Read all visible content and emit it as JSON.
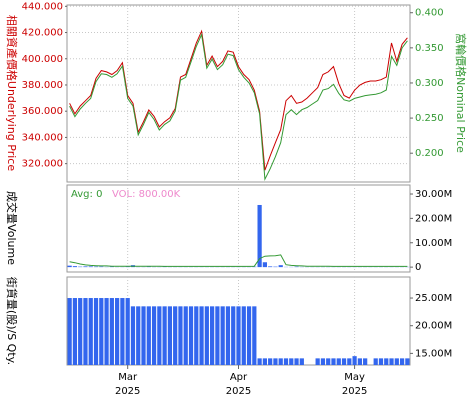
{
  "chart_data": [
    {
      "type": "line",
      "y_label": "相關資產價格Underlying Price",
      "y2_label": "窩輪價格Nominal Price",
      "x": [
        0,
        1,
        2,
        3,
        4,
        5,
        6,
        7,
        8,
        9,
        10,
        11,
        12,
        13,
        14,
        15,
        16,
        17,
        18,
        19,
        20,
        21,
        22,
        23,
        24,
        25,
        26,
        27,
        28,
        29,
        30,
        31,
        32,
        33,
        34,
        35,
        36,
        37,
        38,
        39,
        40,
        41,
        42,
        43,
        44,
        45,
        46,
        47,
        48,
        49,
        50,
        51,
        52,
        53,
        54,
        55,
        56,
        57,
        58,
        59,
        60,
        61,
        62,
        63,
        64
      ],
      "xlim": [
        -0.5,
        64.5
      ],
      "ylim": [
        306,
        441
      ],
      "y2lim": [
        0.159,
        0.411
      ],
      "yticks": [
        {
          "value": 320,
          "label": "320.000"
        },
        {
          "value": 340,
          "label": "340.000"
        },
        {
          "value": 360,
          "label": "360.000"
        },
        {
          "value": 380,
          "label": "380.000"
        },
        {
          "value": 400,
          "label": "400.000"
        },
        {
          "value": 420,
          "label": "420.000"
        },
        {
          "value": 440,
          "label": "440.000"
        }
      ],
      "y2ticks": [
        {
          "value": 0.2,
          "label": "0.200"
        },
        {
          "value": 0.25,
          "label": "0.250"
        },
        {
          "value": 0.3,
          "label": "0.300"
        },
        {
          "value": 0.35,
          "label": "0.350"
        },
        {
          "value": 0.4,
          "label": "0.400"
        }
      ],
      "series": [
        {
          "color": "#cc0000",
          "axis": "y",
          "values": [
            366,
            358,
            364,
            368,
            372,
            385,
            391,
            390,
            388,
            391,
            397,
            372,
            366,
            344,
            352,
            361,
            356,
            348,
            352,
            355,
            362,
            386,
            388,
            400,
            412,
            421,
            395,
            402,
            394,
            398,
            406,
            405,
            394,
            388,
            384,
            376,
            360,
            315,
            326,
            336,
            346,
            368,
            372,
            366,
            367,
            370,
            374,
            378,
            388,
            390,
            394,
            381,
            372,
            370,
            376,
            380,
            382,
            383,
            383,
            384,
            386,
            412,
            398,
            411,
            416
          ]
        },
        {
          "color": "#339933",
          "axis": "y2",
          "values": [
            0.267,
            0.252,
            0.263,
            0.271,
            0.278,
            0.302,
            0.313,
            0.312,
            0.308,
            0.313,
            0.324,
            0.278,
            0.267,
            0.226,
            0.241,
            0.258,
            0.248,
            0.233,
            0.241,
            0.246,
            0.26,
            0.304,
            0.308,
            0.33,
            0.352,
            0.369,
            0.321,
            0.334,
            0.319,
            0.326,
            0.341,
            0.339,
            0.319,
            0.308,
            0.3,
            0.286,
            0.256,
            0.163,
            0.178,
            0.195,
            0.215,
            0.255,
            0.262,
            0.255,
            0.262,
            0.265,
            0.27,
            0.275,
            0.29,
            0.292,
            0.298,
            0.285,
            0.276,
            0.274,
            0.278,
            0.28,
            0.282,
            0.283,
            0.284,
            0.286,
            0.29,
            0.338,
            0.325,
            0.35,
            0.36
          ]
        }
      ]
    },
    {
      "type": "bar",
      "y_label": "成交量Volume",
      "avg_label": "Avg: 0",
      "vol_label": "VOL: 800.00K",
      "ylim": [
        -2000000,
        33700000
      ],
      "yticks": [
        0,
        {
          "value": 10000000,
          "label": "10.00M"
        },
        {
          "value": 20000000,
          "label": "20.00M"
        },
        {
          "value": 30000000,
          "label": "30.00M"
        }
      ],
      "series": [
        {
          "color": "#3366ee",
          "kind": "bar",
          "values": [
            600000,
            400000,
            200000,
            300000,
            300000,
            200000,
            200000,
            100000,
            200000,
            100000,
            100000,
            200000,
            800000,
            100000,
            100000,
            200000,
            100000,
            100000,
            200000,
            100000,
            100000,
            100000,
            100000,
            100000,
            100000,
            100000,
            100000,
            100000,
            100000,
            100000,
            100000,
            100000,
            100000,
            100000,
            100000,
            200000,
            25500000,
            2000000,
            300000,
            200000,
            800000,
            100000,
            100000,
            200000,
            100000,
            100000,
            100000,
            100000,
            100000,
            100000,
            100000,
            100000,
            100000,
            100000,
            100000,
            100000,
            100000,
            100000,
            100000,
            100000,
            100000,
            100000,
            100000,
            100000,
            100000
          ]
        },
        {
          "color": "#339933",
          "kind": "line",
          "values": [
            2200000,
            1800000,
            1300000,
            900000,
            700000,
            600000,
            500000,
            500000,
            400000,
            400000,
            400000,
            400000,
            400000,
            400000,
            400000,
            400000,
            400000,
            400000,
            300000,
            300000,
            300000,
            300000,
            300000,
            300000,
            300000,
            300000,
            300000,
            300000,
            300000,
            300000,
            300000,
            300000,
            300000,
            300000,
            300000,
            400000,
            3500000,
            4500000,
            4600000,
            4700000,
            5000000,
            1000000,
            700000,
            600000,
            500000,
            400000,
            400000,
            400000,
            400000,
            400000,
            300000,
            300000,
            300000,
            300000,
            300000,
            300000,
            300000,
            300000,
            300000,
            300000,
            300000,
            300000,
            300000,
            300000,
            300000
          ]
        }
      ]
    },
    {
      "type": "bar",
      "y_label": "街貨量(股)/S Qty.",
      "ylim": [
        12900000,
        28800000
      ],
      "yticks": [
        {
          "value": 15000000,
          "label": "15.00M"
        },
        {
          "value": 20000000,
          "label": "20.00M"
        },
        {
          "value": 25000000,
          "label": "25.00M"
        }
      ],
      "xticks": [
        {
          "value": 11,
          "label": "Mar 2025"
        },
        {
          "value": 32,
          "label": "Apr 2025"
        },
        {
          "value": 54,
          "label": "May 2025"
        }
      ],
      "color": "#3366ee",
      "values": [
        25000000,
        25000000,
        25000000,
        25000000,
        25000000,
        25000000,
        25000000,
        25000000,
        25000000,
        25000000,
        25000000,
        25000000,
        23500000,
        23500000,
        23500000,
        23500000,
        23500000,
        23500000,
        23500000,
        23500000,
        23500000,
        23500000,
        23500000,
        23500000,
        23500000,
        23500000,
        23500000,
        23500000,
        23500000,
        23500000,
        23500000,
        23500000,
        23500000,
        23500000,
        23500000,
        23500000,
        14100000,
        14100000,
        14100000,
        14100000,
        14100000,
        14100000,
        14100000,
        14100000,
        14100000,
        null,
        null,
        14100000,
        14100000,
        14100000,
        14100000,
        14100000,
        14100000,
        14100000,
        14500000,
        14100000,
        14100000,
        null,
        14100000,
        14100000,
        14100000,
        14100000,
        14100000,
        14100000,
        14100000
      ]
    }
  ]
}
